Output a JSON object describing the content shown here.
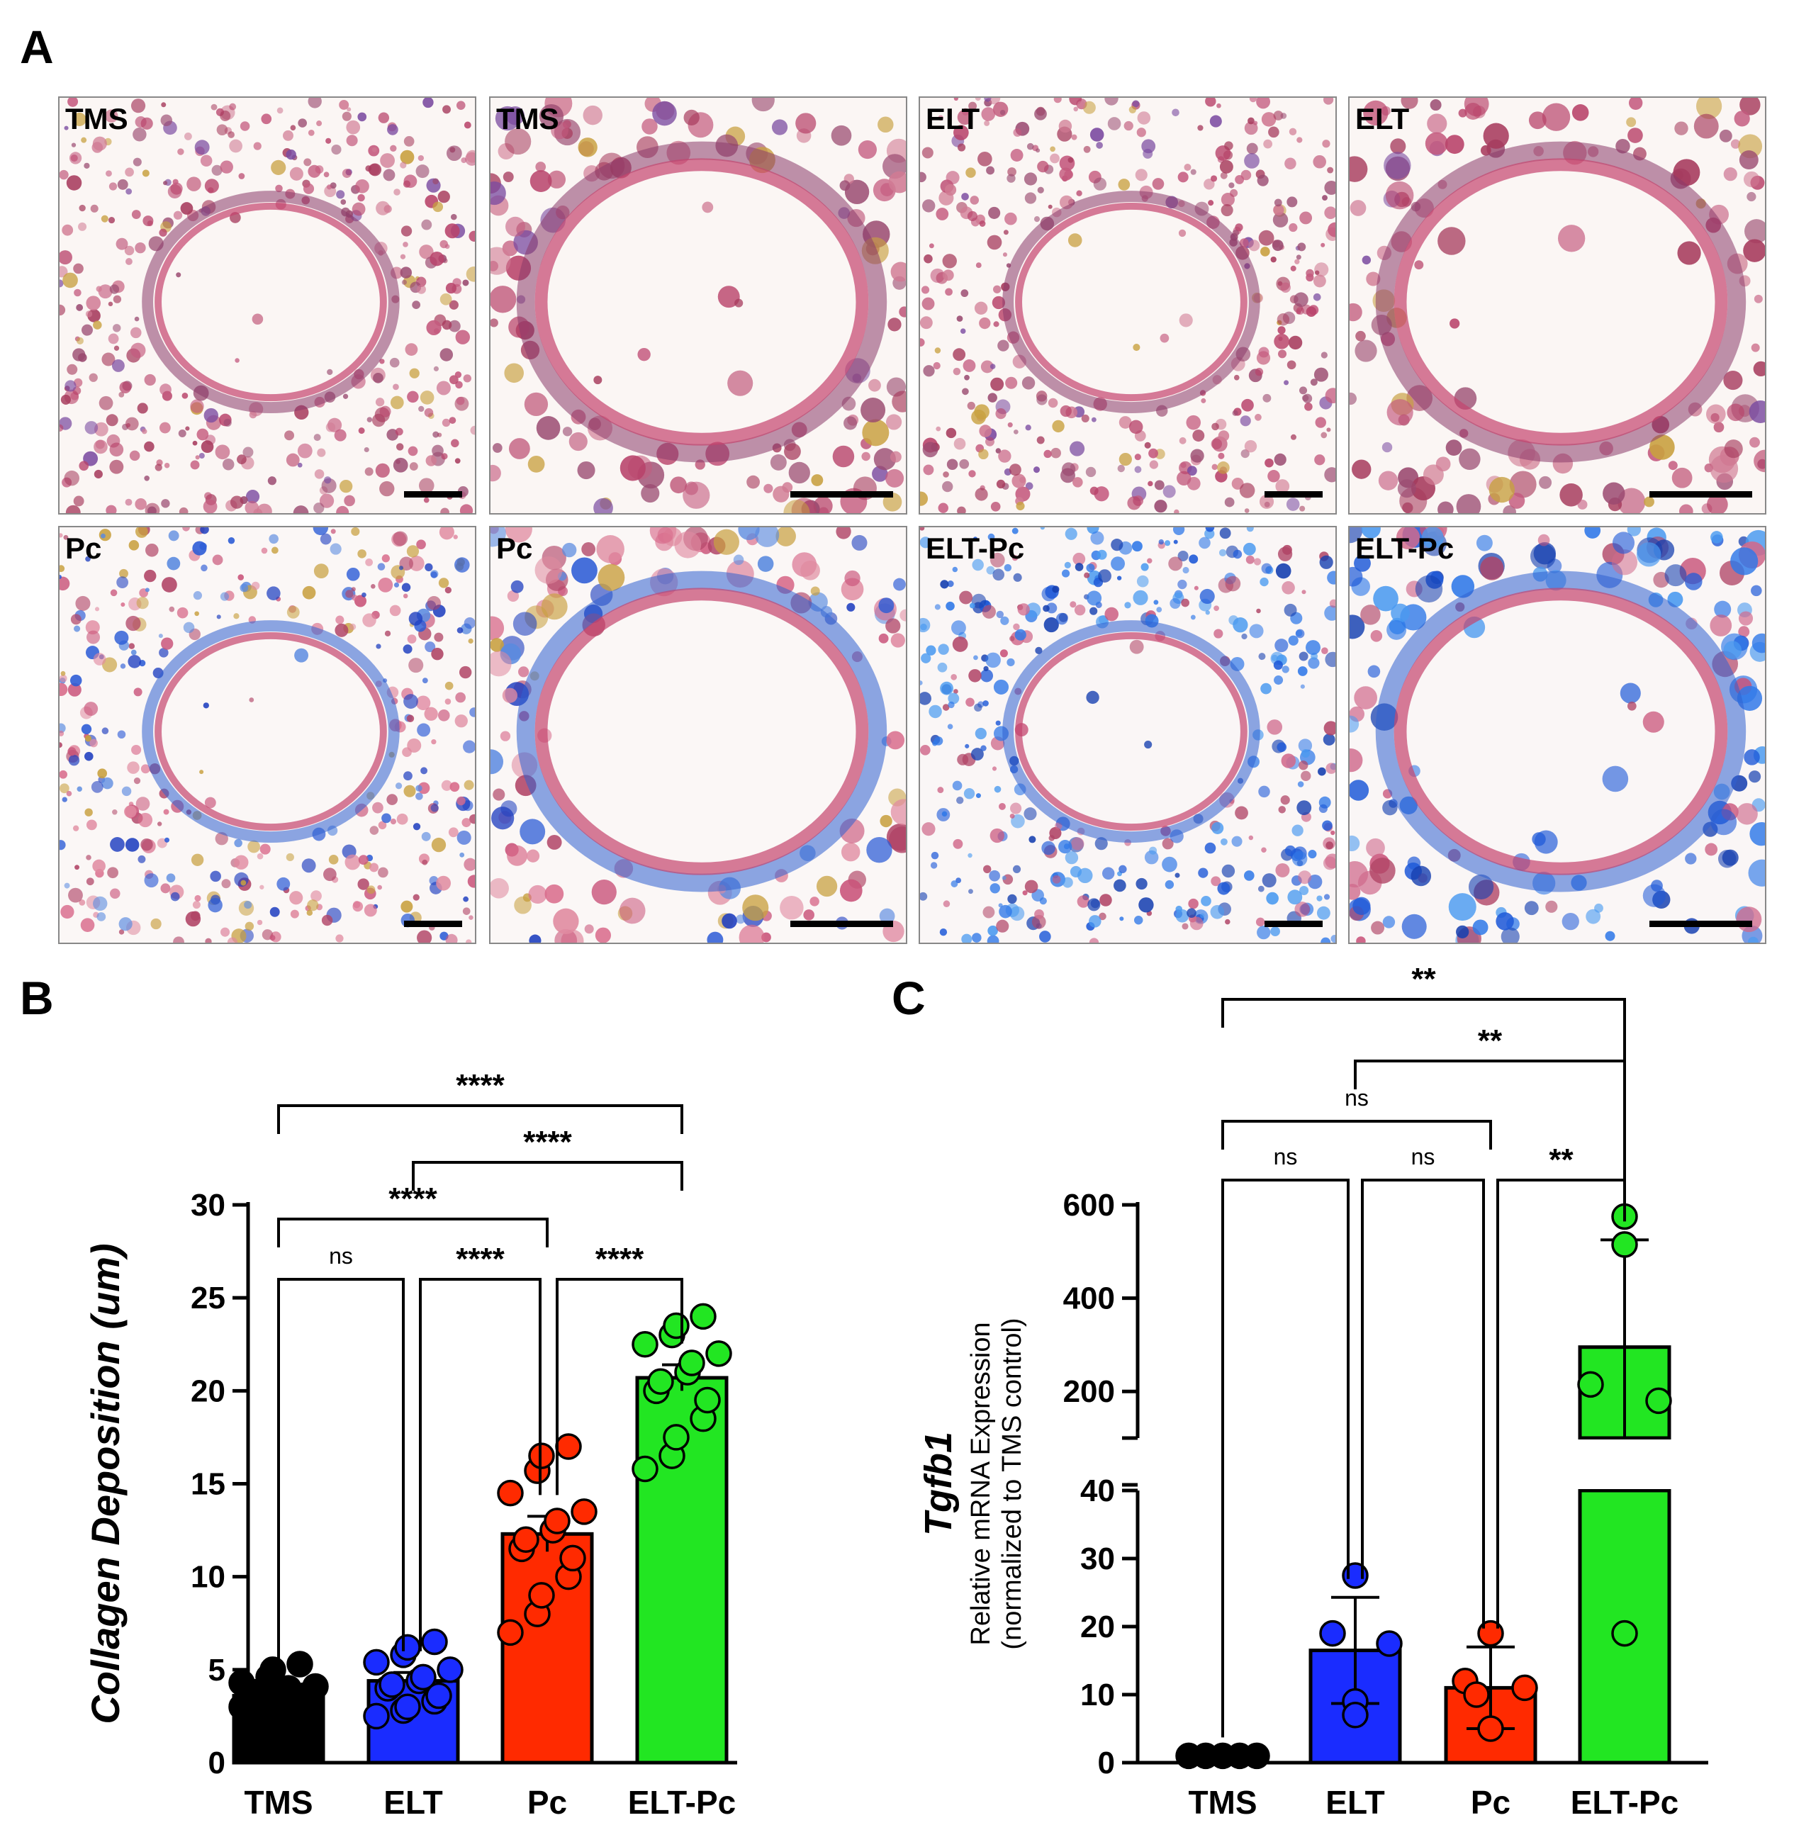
{
  "panels": {
    "a": "A",
    "b": "B",
    "c": "C"
  },
  "tiles": [
    {
      "label": "TMS",
      "style": "normal",
      "zoom": false
    },
    {
      "label": "TMS",
      "style": "normal",
      "zoom": true
    },
    {
      "label": "ELT",
      "style": "normal",
      "zoom": false
    },
    {
      "label": "ELT",
      "style": "normal",
      "zoom": true
    },
    {
      "label": "Pc",
      "style": "fibrotic",
      "zoom": false
    },
    {
      "label": "Pc",
      "style": "fibrotic",
      "zoom": true
    },
    {
      "label": "ELT-Pc",
      "style": "heavy",
      "zoom": false
    },
    {
      "label": "ELT-Pc",
      "style": "heavy",
      "zoom": true
    }
  ],
  "colors": {
    "TMS": "#000000",
    "ELT": "#1a2cff",
    "Pc": "#ff2a00",
    "ELT-Pc": "#22e622"
  },
  "chart_data": [
    {
      "type": "bar",
      "ylabel": "Collagen Deposition (um)",
      "categories": [
        "TMS",
        "ELT",
        "Pc",
        "ELT-Pc"
      ],
      "ylim": [
        0,
        30
      ],
      "yticks": [
        0,
        5,
        10,
        15,
        20,
        25,
        30
      ],
      "means": [
        3.6,
        4.4,
        12.3,
        20.7
      ],
      "sem": [
        0.3,
        0.45,
        0.95,
        0.7
      ],
      "points": [
        [
          3.0,
          3.2,
          3.4,
          3.5,
          3.6,
          3.7,
          3.8,
          3.9,
          4.0,
          4.1,
          4.3,
          4.6,
          5.0,
          5.3
        ],
        [
          2.5,
          2.8,
          3.0,
          3.3,
          3.6,
          4.0,
          4.2,
          4.4,
          4.6,
          5.0,
          5.4,
          5.8,
          6.2,
          6.5
        ],
        [
          7.0,
          8.0,
          9.0,
          10.0,
          11.0,
          11.5,
          12.0,
          12.5,
          13.0,
          13.5,
          14.5,
          15.7,
          16.5,
          17.0
        ],
        [
          15.8,
          16.5,
          17.5,
          18.5,
          19.5,
          20.0,
          20.5,
          21.0,
          21.5,
          22.0,
          22.5,
          23.0,
          23.5,
          24.0
        ]
      ],
      "comparisons": [
        {
          "a": 0,
          "b": 3,
          "label": "****"
        },
        {
          "a": 1,
          "b": 3,
          "label": "****"
        },
        {
          "a": 0,
          "b": 2,
          "label": "****"
        },
        {
          "a": 0,
          "b": 1,
          "label": "ns"
        },
        {
          "a": 1,
          "b": 2,
          "label": "****"
        },
        {
          "a": 2,
          "b": 3,
          "label": "****"
        }
      ]
    },
    {
      "type": "bar",
      "ylabel_gene": "Tgfb1",
      "ylabel_1": "Relative mRNA Expression",
      "ylabel_2": "(normalized to TMS control)",
      "categories": [
        "TMS",
        "ELT",
        "Pc",
        "ELT-Pc"
      ],
      "axis_break": [
        40,
        100
      ],
      "lower_ticks": [
        0,
        10,
        20,
        30,
        40
      ],
      "upper_ticks": [
        200,
        400,
        600
      ],
      "means": [
        1,
        16.5,
        11,
        295
      ],
      "error": [
        0,
        7.8,
        6,
        230
      ],
      "points": [
        [
          1,
          1,
          1,
          1,
          1
        ],
        [
          27.5,
          19,
          17.5,
          9,
          7
        ],
        [
          19,
          12,
          11,
          10,
          5
        ],
        [
          575,
          515,
          215,
          180,
          19
        ]
      ],
      "comparisons": [
        {
          "a": 0,
          "b": 3,
          "label": "**"
        },
        {
          "a": 1,
          "b": 3,
          "label": "**"
        },
        {
          "a": 0,
          "b": 2,
          "label": "ns"
        },
        {
          "a": 0,
          "b": 1,
          "label": "ns"
        },
        {
          "a": 1,
          "b": 2,
          "label": "ns"
        },
        {
          "a": 2,
          "b": 3,
          "label": "**"
        }
      ]
    }
  ]
}
